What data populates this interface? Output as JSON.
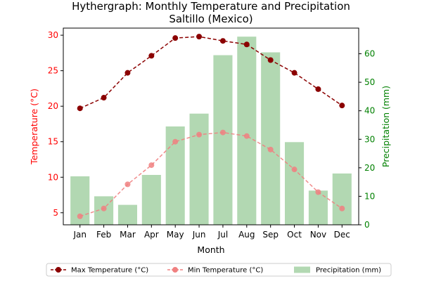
{
  "chart_data": {
    "type": "line+bar",
    "title": "Hythergraph: Monthly Temperature and Precipitation",
    "subtitle": "Saltillo (Mexico)",
    "xlabel": "Month",
    "ylabel_left": "Temperature (°C)",
    "ylabel_right": "Precipitation (mm)",
    "categories": [
      "Jan",
      "Feb",
      "Mar",
      "Apr",
      "May",
      "Jun",
      "Jul",
      "Aug",
      "Sep",
      "Oct",
      "Nov",
      "Dec"
    ],
    "ylim_left": [
      3.3,
      31
    ],
    "yticks_left": [
      5,
      10,
      15,
      20,
      25,
      30
    ],
    "ylim_right": [
      0,
      69
    ],
    "yticks_right": [
      0,
      10,
      20,
      30,
      40,
      50,
      60
    ],
    "legend_position": "bottom-center",
    "grid": false,
    "series": [
      {
        "name": "Max Temperature (°C)",
        "kind": "line",
        "axis": "left",
        "color": "#8b0000",
        "linestyle": "dashed",
        "marker": "circle",
        "values": [
          19.7,
          21.2,
          24.7,
          27.1,
          29.6,
          29.8,
          29.2,
          28.7,
          26.5,
          24.7,
          22.4,
          20.1
        ]
      },
      {
        "name": "Min Temperature (°C)",
        "kind": "line",
        "axis": "left",
        "color": "#f08080",
        "linestyle": "dashed",
        "marker": "circle",
        "values": [
          4.5,
          5.6,
          9.0,
          11.7,
          15.0,
          16.0,
          16.3,
          15.8,
          13.9,
          11.1,
          7.9,
          5.6
        ]
      },
      {
        "name": "Precipitation (mm)",
        "kind": "bar",
        "axis": "right",
        "color": "#b2d8b2",
        "values": [
          17,
          10,
          7,
          17.5,
          34.5,
          39,
          59.5,
          66,
          60.5,
          29,
          12,
          18
        ]
      }
    ]
  },
  "colors": {
    "left_axis": "#ff0000",
    "right_axis": "#008000"
  }
}
